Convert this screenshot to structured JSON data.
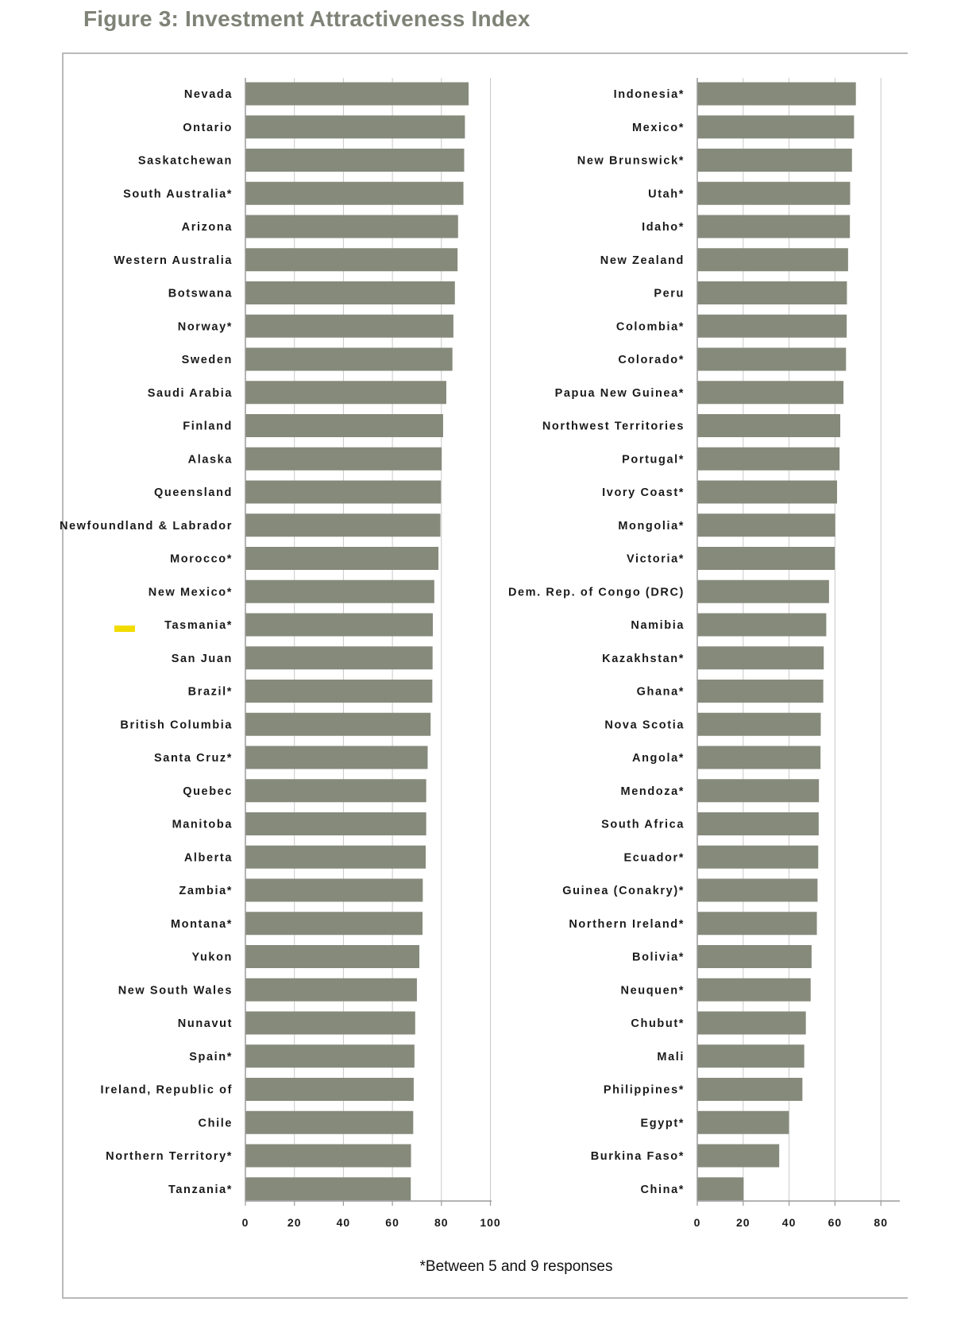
{
  "title": "Figure 3: Investment Attractiveness Index",
  "footnote": "*Between 5 and 9 responses",
  "colors": {
    "bar": "#868a7b",
    "title": "#7f8377",
    "grid": "#c9c9c9",
    "highlight": "#f2dc00"
  },
  "highlight_category": "Tasmania*",
  "chart_data": [
    {
      "type": "bar",
      "orientation": "horizontal",
      "title": "Figure 3: Investment Attractiveness Index",
      "xlim": [
        0,
        100
      ],
      "xticks": [
        0,
        20,
        40,
        60,
        80,
        100
      ],
      "grid": true,
      "categories": [
        "Nevada",
        "Ontario",
        "Saskatchewan",
        "South Australia*",
        "Arizona",
        "Western Australia",
        "Botswana",
        "Norway*",
        "Sweden",
        "Saudi Arabia",
        "Finland",
        "Alaska",
        "Queensland",
        "Newfoundland & Labrador",
        "Morocco*",
        "New Mexico*",
        "Tasmania*",
        "San Juan",
        "Brazil*",
        "British Columbia",
        "Santa Cruz*",
        "Quebec",
        "Manitoba",
        "Alberta",
        "Zambia*",
        "Montana*",
        "Yukon",
        "New South Wales",
        "Nunavut",
        "Spain*",
        "Ireland, Republic of",
        "Chile",
        "Northern Territory*",
        "Tanzania*"
      ],
      "values": [
        91.1,
        89.6,
        89.3,
        89.0,
        86.8,
        86.6,
        85.5,
        84.9,
        84.5,
        82.0,
        80.7,
        80.1,
        79.8,
        79.6,
        78.8,
        77.1,
        76.5,
        76.4,
        76.3,
        75.6,
        74.4,
        73.8,
        73.8,
        73.6,
        72.4,
        72.3,
        71.0,
        70.0,
        69.3,
        69.0,
        68.7,
        68.5,
        67.6,
        67.5
      ]
    },
    {
      "type": "bar",
      "orientation": "horizontal",
      "xlim": [
        0,
        85
      ],
      "xticks": [
        0,
        20,
        40,
        60,
        80
      ],
      "grid": true,
      "categories": [
        "Indonesia*",
        "Mexico*",
        "New Brunswick*",
        "Utah*",
        "Idaho*",
        "New Zealand",
        "Peru",
        "Colombia*",
        "Colorado*",
        "Papua New Guinea*",
        "Northwest Territories",
        "Portugal*",
        "Ivory Coast*",
        "Mongolia*",
        "Victoria*",
        "Dem. Rep. of Congo (DRC)",
        "Namibia",
        "Kazakhstan*",
        "Ghana*",
        "Nova Scotia",
        "Angola*",
        "Mendoza*",
        "South Africa",
        "Ecuador*",
        "Guinea (Conakry)*",
        "Northern Ireland*",
        "Bolivia*",
        "Neuquen*",
        "Chubut*",
        "Mali",
        "Philippines*",
        "Egypt*",
        "Burkina Faso*",
        "China*"
      ],
      "values": [
        69.1,
        68.3,
        67.4,
        66.6,
        66.5,
        65.7,
        65.2,
        65.1,
        64.8,
        63.7,
        62.3,
        62.0,
        60.9,
        60.1,
        59.9,
        57.4,
        56.2,
        55.1,
        54.9,
        53.8,
        53.7,
        53.0,
        52.9,
        52.7,
        52.4,
        52.1,
        49.8,
        49.4,
        47.3,
        46.6,
        45.8,
        39.9,
        35.7,
        20.2
      ]
    }
  ]
}
